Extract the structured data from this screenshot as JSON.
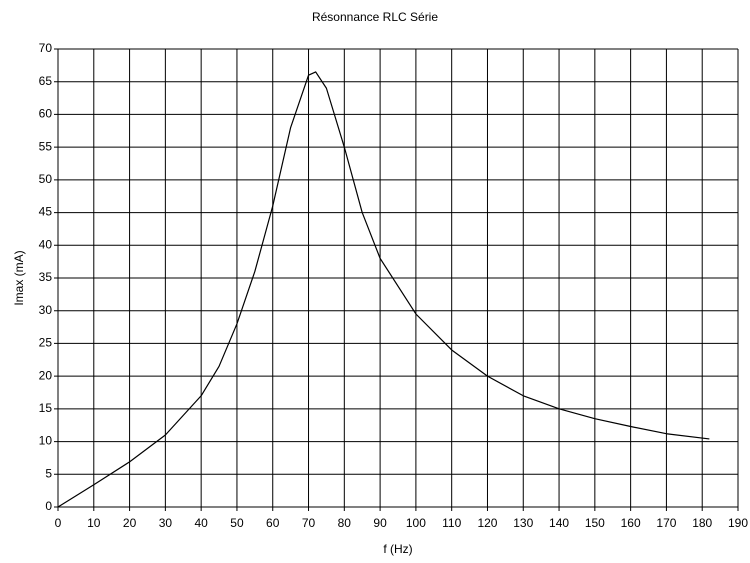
{
  "chart_data": {
    "type": "line",
    "title": "Résonnance RLC Série",
    "x_label": "f (Hz)",
    "y_label": "Imax (mA)",
    "x": [
      0,
      10,
      20,
      30,
      40,
      45,
      50,
      55,
      60,
      65,
      70,
      72,
      75,
      80,
      85,
      90,
      100,
      110,
      120,
      130,
      140,
      150,
      160,
      170,
      182
    ],
    "series": [
      {
        "color": "#000000",
        "values": [
          0,
          3.4,
          6.9,
          11,
          17,
          21.5,
          28,
          36,
          46,
          58,
          66,
          66.5,
          64,
          55,
          45,
          38,
          29.5,
          24,
          20,
          17,
          15,
          13.5,
          12.3,
          11.2,
          10.4
        ]
      }
    ],
    "xlim": [
      0,
      190
    ],
    "xticks": [
      0,
      10,
      20,
      30,
      40,
      50,
      60,
      70,
      80,
      90,
      100,
      110,
      120,
      130,
      140,
      150,
      160,
      170,
      180,
      190
    ],
    "ylim": [
      0,
      70
    ],
    "yticks": [
      0,
      5,
      10,
      15,
      20,
      25,
      30,
      35,
      40,
      45,
      50,
      55,
      60,
      65,
      70
    ],
    "grid": true
  }
}
